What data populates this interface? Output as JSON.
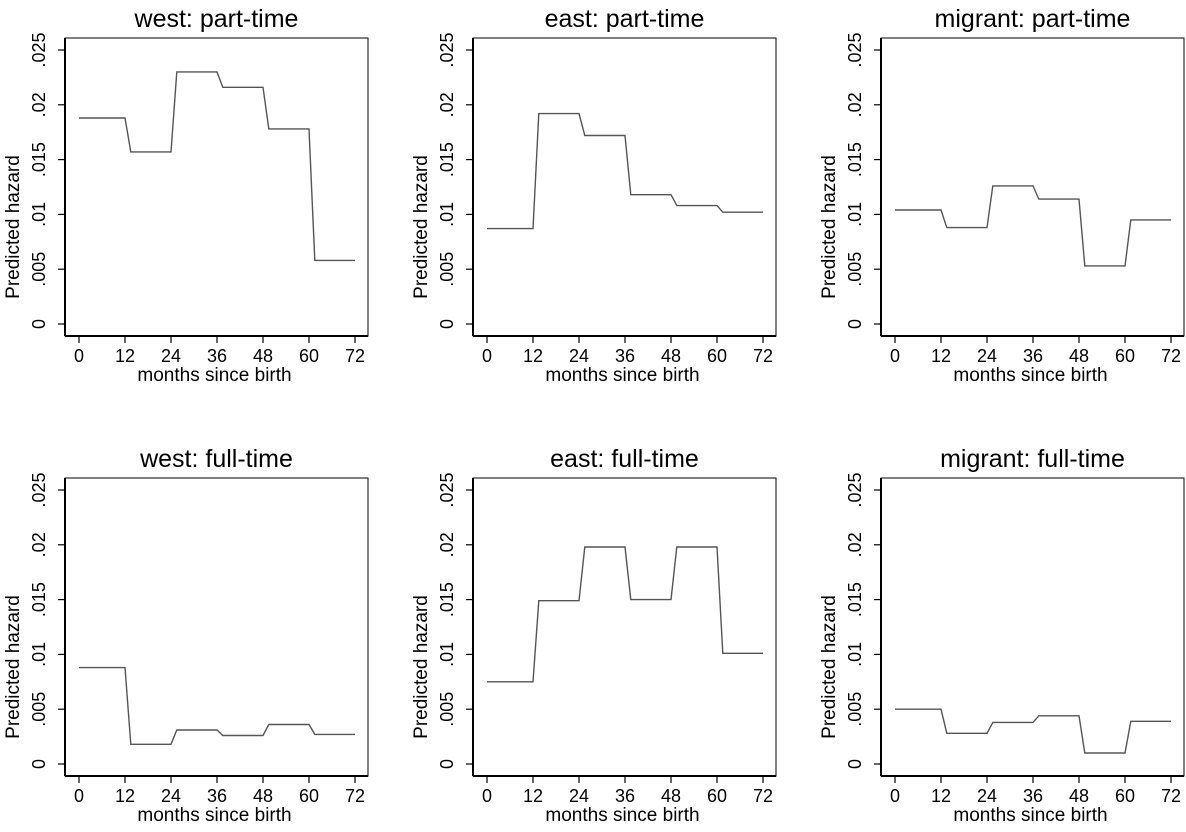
{
  "chart_data": [
    {
      "type": "line",
      "title": "west: part-time",
      "xlabel": "months since birth",
      "ylabel": "Predicted hazard",
      "xlim": [
        0,
        72
      ],
      "ylim": [
        0,
        0.025
      ],
      "xticks": [
        "0",
        "12",
        "24",
        "36",
        "48",
        "60",
        "72"
      ],
      "yticks": [
        "0",
        ".005",
        ".01",
        ".015",
        ".02",
        ".025"
      ],
      "step_intervals": [
        [
          0,
          12
        ],
        [
          12,
          24
        ],
        [
          24,
          36
        ],
        [
          36,
          48
        ],
        [
          48,
          60
        ],
        [
          60,
          72
        ]
      ],
      "values": [
        0.0188,
        0.0157,
        0.023,
        0.0216,
        0.0178,
        0.0058
      ]
    },
    {
      "type": "line",
      "title": "east: part-time",
      "xlabel": "months since birth",
      "ylabel": "Predicted hazard",
      "xlim": [
        0,
        72
      ],
      "ylim": [
        0,
        0.025
      ],
      "xticks": [
        "0",
        "12",
        "24",
        "36",
        "48",
        "60",
        "72"
      ],
      "yticks": [
        "0",
        ".005",
        ".01",
        ".015",
        ".02",
        ".025"
      ],
      "step_intervals": [
        [
          0,
          12
        ],
        [
          12,
          24
        ],
        [
          24,
          36
        ],
        [
          36,
          48
        ],
        [
          48,
          60
        ],
        [
          60,
          72
        ]
      ],
      "values": [
        0.0087,
        0.0192,
        0.0172,
        0.0118,
        0.0108,
        0.0102
      ]
    },
    {
      "type": "line",
      "title": "migrant: part-time",
      "xlabel": "months since birth",
      "ylabel": "Predicted hazard",
      "xlim": [
        0,
        72
      ],
      "ylim": [
        0,
        0.025
      ],
      "xticks": [
        "0",
        "12",
        "24",
        "36",
        "48",
        "60",
        "72"
      ],
      "yticks": [
        "0",
        ".005",
        ".01",
        ".015",
        ".02",
        ".025"
      ],
      "step_intervals": [
        [
          0,
          12
        ],
        [
          12,
          24
        ],
        [
          24,
          36
        ],
        [
          36,
          48
        ],
        [
          48,
          60
        ],
        [
          60,
          72
        ]
      ],
      "values": [
        0.0104,
        0.0088,
        0.0126,
        0.0114,
        0.0053,
        0.0095
      ]
    },
    {
      "type": "line",
      "title": "west: full-time",
      "xlabel": "months since birth",
      "ylabel": "Predicted hazard",
      "xlim": [
        0,
        72
      ],
      "ylim": [
        0,
        0.025
      ],
      "xticks": [
        "0",
        "12",
        "24",
        "36",
        "48",
        "60",
        "72"
      ],
      "yticks": [
        "0",
        ".005",
        ".01",
        ".015",
        ".02",
        ".025"
      ],
      "step_intervals": [
        [
          0,
          12
        ],
        [
          12,
          24
        ],
        [
          24,
          36
        ],
        [
          36,
          48
        ],
        [
          48,
          60
        ],
        [
          60,
          72
        ]
      ],
      "values": [
        0.0088,
        0.0018,
        0.0031,
        0.0026,
        0.0036,
        0.0027
      ]
    },
    {
      "type": "line",
      "title": "east: full-time",
      "xlabel": "months since birth",
      "ylabel": "Predicted hazard",
      "xlim": [
        0,
        72
      ],
      "ylim": [
        0,
        0.025
      ],
      "xticks": [
        "0",
        "12",
        "24",
        "36",
        "48",
        "60",
        "72"
      ],
      "yticks": [
        "0",
        ".005",
        ".01",
        ".015",
        ".02",
        ".025"
      ],
      "step_intervals": [
        [
          0,
          12
        ],
        [
          12,
          24
        ],
        [
          24,
          36
        ],
        [
          36,
          48
        ],
        [
          48,
          60
        ],
        [
          60,
          72
        ]
      ],
      "values": [
        0.0075,
        0.0149,
        0.0198,
        0.015,
        0.0198,
        0.0101
      ]
    },
    {
      "type": "line",
      "title": "migrant: full-time",
      "xlabel": "months since birth",
      "ylabel": "Predicted hazard",
      "xlim": [
        0,
        72
      ],
      "ylim": [
        0,
        0.025
      ],
      "xticks": [
        "0",
        "12",
        "24",
        "36",
        "48",
        "60",
        "72"
      ],
      "yticks": [
        "0",
        ".005",
        ".01",
        ".015",
        ".02",
        ".025"
      ],
      "step_intervals": [
        [
          0,
          12
        ],
        [
          12,
          24
        ],
        [
          24,
          36
        ],
        [
          36,
          48
        ],
        [
          48,
          60
        ],
        [
          60,
          72
        ]
      ],
      "values": [
        0.005,
        0.0028,
        0.0038,
        0.0044,
        0.001,
        0.0039
      ]
    }
  ],
  "colors": {
    "series": "#555555",
    "axis": "#000000",
    "background": "#ffffff"
  }
}
